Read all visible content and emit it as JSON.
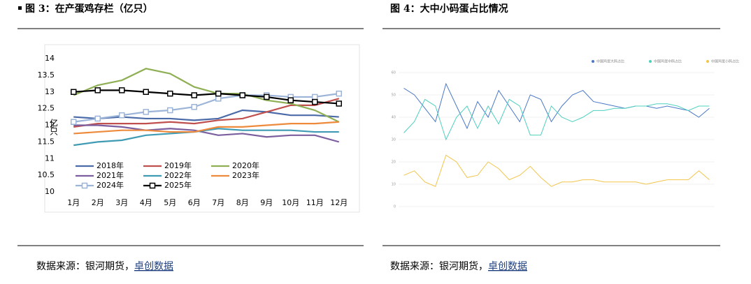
{
  "figures": [
    {
      "caption": "图 3：在产蛋鸡存栏（亿只）",
      "source": [
        "数据来源：银河期货，",
        "卓创数据"
      ]
    },
    {
      "caption": "图 4：大中小码蛋占比情况",
      "source": [
        "数据来源：银河期货，",
        "卓创数据"
      ]
    }
  ],
  "chart_data": [
    {
      "type": "line",
      "y_label": "亿只",
      "categories": [
        "1月",
        "2月",
        "3月",
        "4月",
        "5月",
        "6月",
        "7月",
        "8月",
        "9月",
        "10月",
        "11月",
        "12月"
      ],
      "ylim": [
        10,
        14
      ],
      "yticks": [
        10,
        10.5,
        11,
        11.5,
        12,
        12.5,
        13,
        13.5,
        14
      ],
      "series": [
        {
          "name": "2018年",
          "color": "#4a6aa8",
          "values": [
            12.25,
            12.2,
            12.25,
            12.2,
            12.2,
            12.15,
            12.2,
            12.45,
            12.4,
            12.3,
            12.3,
            12.25
          ]
        },
        {
          "name": "2019年",
          "color": "#c0504d",
          "values": [
            11.95,
            12.05,
            12.05,
            12.05,
            12.1,
            12.05,
            12.15,
            12.2,
            12.4,
            12.6,
            12.6,
            12.8
          ]
        },
        {
          "name": "2020年",
          "color": "#8faf55",
          "values": [
            12.9,
            13.2,
            13.35,
            13.7,
            13.55,
            13.15,
            12.95,
            12.95,
            12.75,
            12.65,
            12.45,
            12.1
          ]
        },
        {
          "name": "2021年",
          "color": "#7b5e9e",
          "values": [
            12.0,
            12.0,
            11.95,
            11.85,
            11.9,
            11.85,
            11.7,
            11.75,
            11.65,
            11.7,
            11.7,
            11.5
          ]
        },
        {
          "name": "2022年",
          "color": "#3e9bb3",
          "values": [
            11.4,
            11.5,
            11.55,
            11.7,
            11.75,
            11.8,
            11.9,
            11.85,
            11.85,
            11.85,
            11.8,
            11.8
          ]
        },
        {
          "name": "2023年",
          "color": "#ee8a3c",
          "values": [
            11.75,
            11.8,
            11.85,
            11.85,
            11.8,
            11.8,
            11.95,
            11.95,
            12.0,
            12.05,
            12.05,
            12.1
          ]
        },
        {
          "name": "2024年",
          "color": "#9bb4d8",
          "marker": "square",
          "values": [
            12.1,
            12.2,
            12.3,
            12.4,
            12.45,
            12.55,
            12.8,
            12.9,
            12.9,
            12.85,
            12.85,
            12.95
          ]
        },
        {
          "name": "2025年",
          "color": "#000000",
          "marker": "square",
          "values": [
            13.0,
            13.05,
            13.05,
            13.0,
            12.95,
            12.9,
            12.95,
            12.9,
            12.85,
            12.75,
            12.7,
            12.65
          ]
        }
      ]
    },
    {
      "type": "line",
      "ylim": [
        0,
        60
      ],
      "yticks": [
        0,
        10,
        20,
        30,
        40,
        50,
        60
      ],
      "series": [
        {
          "name": "中国鸡蛋大码占比",
          "color": "#4a78c8",
          "values": [
            53,
            50,
            44,
            38,
            55,
            45,
            35,
            47,
            40,
            52,
            45,
            38,
            50,
            48,
            38,
            45,
            50,
            52,
            47,
            46,
            45,
            44,
            45,
            45,
            44,
            45,
            44,
            43,
            40,
            44
          ]
        },
        {
          "name": "中国鸡蛋中码占比",
          "color": "#4fd0bf",
          "values": [
            33,
            38,
            48,
            45,
            30,
            40,
            45,
            35,
            45,
            37,
            48,
            45,
            32,
            32,
            45,
            40,
            38,
            40,
            43,
            43,
            44,
            44,
            45,
            45,
            46,
            46,
            45,
            43,
            45,
            45
          ]
        },
        {
          "name": "中国鸡蛋小码占比",
          "color": "#f2c54a",
          "values": [
            14,
            16,
            11,
            9,
            23,
            20,
            13,
            14,
            20,
            17,
            12,
            14,
            18,
            13,
            9,
            11,
            11,
            12,
            12,
            11,
            11,
            11,
            11,
            10,
            11,
            12,
            12,
            12,
            16,
            12
          ]
        }
      ]
    }
  ]
}
